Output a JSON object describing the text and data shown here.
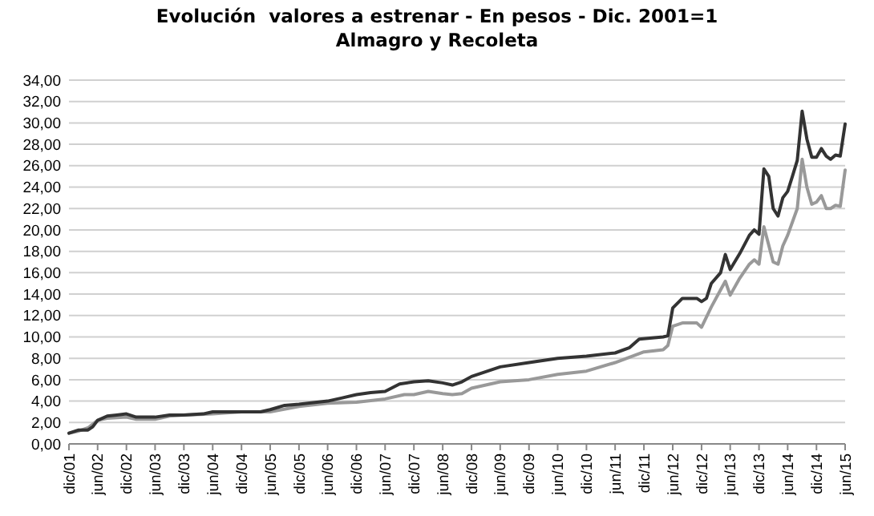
{
  "chart_data": {
    "type": "line",
    "title": "Evolución  valores a estrenar - En pesos - Dic. 2001=1",
    "subtitle": "Almagro y Recoleta",
    "xlim": [
      "2001-12",
      "2015-06"
    ],
    "xticks": [
      {
        "value": "2001-12",
        "label": "dic/01"
      },
      {
        "value": "2002-06",
        "label": "jun/02"
      },
      {
        "value": "2002-12",
        "label": "dic/02"
      },
      {
        "value": "2003-06",
        "label": "jun/03"
      },
      {
        "value": "2003-12",
        "label": "dic/03"
      },
      {
        "value": "2004-06",
        "label": "jun/04"
      },
      {
        "value": "2004-12",
        "label": "dic/04"
      },
      {
        "value": "2005-06",
        "label": "jun/05"
      },
      {
        "value": "2005-12",
        "label": "dic/05"
      },
      {
        "value": "2006-06",
        "label": "jun/06"
      },
      {
        "value": "2006-12",
        "label": "dic/06"
      },
      {
        "value": "2007-06",
        "label": "jun/07"
      },
      {
        "value": "2007-12",
        "label": "dic/07"
      },
      {
        "value": "2008-06",
        "label": "jun/08"
      },
      {
        "value": "2008-12",
        "label": "dic/08"
      },
      {
        "value": "2009-06",
        "label": "jun/09"
      },
      {
        "value": "2009-12",
        "label": "dic/09"
      },
      {
        "value": "2010-06",
        "label": "jun/10"
      },
      {
        "value": "2010-12",
        "label": "dic/10"
      },
      {
        "value": "2011-06",
        "label": "jun/11"
      },
      {
        "value": "2011-12",
        "label": "dic/11"
      },
      {
        "value": "2012-06",
        "label": "jun/12"
      },
      {
        "value": "2012-12",
        "label": "dic/12"
      },
      {
        "value": "2013-06",
        "label": "jun/13"
      },
      {
        "value": "2013-12",
        "label": "dic/13"
      },
      {
        "value": "2014-06",
        "label": "jun/14"
      },
      {
        "value": "2014-12",
        "label": "dic/14"
      },
      {
        "value": "2015-06",
        "label": "jun/15"
      }
    ],
    "ylim": [
      0,
      34
    ],
    "yticks": [
      {
        "value": 0,
        "label": "0,00"
      },
      {
        "value": 2,
        "label": "2,00"
      },
      {
        "value": 4,
        "label": "4,00"
      },
      {
        "value": 6,
        "label": "6,00"
      },
      {
        "value": 8,
        "label": "8,00"
      },
      {
        "value": 10,
        "label": "10,00"
      },
      {
        "value": 12,
        "label": "12,00"
      },
      {
        "value": 14,
        "label": "14,00"
      },
      {
        "value": 16,
        "label": "16,00"
      },
      {
        "value": 18,
        "label": "18,00"
      },
      {
        "value": 20,
        "label": "20,00"
      },
      {
        "value": 22,
        "label": "22,00"
      },
      {
        "value": 24,
        "label": "24,00"
      },
      {
        "value": 26,
        "label": "26,00"
      },
      {
        "value": 28,
        "label": "28,00"
      },
      {
        "value": 30,
        "label": "30,00"
      },
      {
        "value": 32,
        "label": "32,00"
      },
      {
        "value": 34,
        "label": "34,00"
      }
    ],
    "grid": "y",
    "marker": "none",
    "line_style": "solid",
    "series": [
      {
        "color": "#999999",
        "x": [
          "2001-12",
          "2002-02",
          "2002-04",
          "2002-06",
          "2002-08",
          "2002-12",
          "2003-02",
          "2003-06",
          "2003-09",
          "2003-12",
          "2004-06",
          "2004-12",
          "2005-06",
          "2005-12",
          "2006-06",
          "2006-12",
          "2007-06",
          "2007-10",
          "2007-12",
          "2008-03",
          "2008-06",
          "2008-08",
          "2008-10",
          "2008-12",
          "2009-06",
          "2009-12",
          "2010-06",
          "2010-12",
          "2011-06",
          "2011-12",
          "2012-04",
          "2012-05",
          "2012-06",
          "2012-08",
          "2012-11",
          "2012-12",
          "2013-02",
          "2013-04",
          "2013-05",
          "2013-06",
          "2013-08",
          "2013-10",
          "2013-11",
          "2013-12",
          "2014-01",
          "2014-03",
          "2014-04",
          "2014-05",
          "2014-06",
          "2014-08",
          "2014-09",
          "2014-10",
          "2014-11",
          "2014-12",
          "2015-01",
          "2015-02",
          "2015-03",
          "2015-04",
          "2015-05",
          "2015-06"
        ],
        "values": [
          1.0,
          1.2,
          1.5,
          2.2,
          2.4,
          2.5,
          2.3,
          2.3,
          2.6,
          2.7,
          2.8,
          3.0,
          3.0,
          3.5,
          3.8,
          3.9,
          4.2,
          4.6,
          4.6,
          4.9,
          4.7,
          4.6,
          4.7,
          5.2,
          5.8,
          6.0,
          6.5,
          6.8,
          7.6,
          8.6,
          8.8,
          9.2,
          11.0,
          11.3,
          11.3,
          10.9,
          12.8,
          14.4,
          15.2,
          13.9,
          15.5,
          16.8,
          17.2,
          16.8,
          20.3,
          17.0,
          16.8,
          18.5,
          19.5,
          22.0,
          26.6,
          24.0,
          22.4,
          22.6,
          23.2,
          22.0,
          22.0,
          22.3,
          22.2,
          25.6
        ]
      },
      {
        "color": "#333333",
        "x": [
          "2001-12",
          "2002-02",
          "2002-04",
          "2002-05",
          "2002-06",
          "2002-08",
          "2002-10",
          "2002-12",
          "2003-02",
          "2003-04",
          "2003-06",
          "2003-09",
          "2003-12",
          "2004-04",
          "2004-06",
          "2004-12",
          "2005-04",
          "2005-06",
          "2005-09",
          "2005-12",
          "2006-06",
          "2006-09",
          "2006-12",
          "2007-03",
          "2007-06",
          "2007-09",
          "2007-12",
          "2008-03",
          "2008-06",
          "2008-08",
          "2008-10",
          "2008-12",
          "2009-06",
          "2009-12",
          "2010-06",
          "2010-12",
          "2011-06",
          "2011-09",
          "2011-11",
          "2012-04",
          "2012-05",
          "2012-06",
          "2012-08",
          "2012-11",
          "2012-12",
          "2013-01",
          "2013-02",
          "2013-04",
          "2013-05",
          "2013-06",
          "2013-08",
          "2013-10",
          "2013-11",
          "2013-12",
          "2014-01",
          "2014-02",
          "2014-03",
          "2014-04",
          "2014-05",
          "2014-06",
          "2014-07",
          "2014-08",
          "2014-09",
          "2014-10",
          "2014-11",
          "2014-12",
          "2015-01",
          "2015-02",
          "2015-03",
          "2015-04",
          "2015-05",
          "2015-06"
        ],
        "values": [
          1.0,
          1.3,
          1.3,
          1.6,
          2.2,
          2.6,
          2.7,
          2.8,
          2.5,
          2.5,
          2.5,
          2.7,
          2.7,
          2.8,
          3.0,
          3.0,
          3.0,
          3.2,
          3.6,
          3.7,
          4.0,
          4.3,
          4.6,
          4.8,
          4.9,
          5.6,
          5.8,
          5.9,
          5.7,
          5.5,
          5.8,
          6.3,
          7.2,
          7.6,
          8.0,
          8.2,
          8.5,
          9.0,
          9.8,
          10.0,
          10.1,
          12.7,
          13.6,
          13.6,
          13.3,
          13.6,
          15.0,
          16.0,
          17.7,
          16.3,
          17.8,
          19.5,
          20.0,
          19.6,
          25.7,
          25.0,
          22.0,
          21.3,
          23.0,
          23.6,
          25.0,
          26.5,
          31.1,
          28.5,
          26.8,
          26.8,
          27.6,
          26.9,
          26.6,
          27.0,
          26.9,
          29.9
        ]
      }
    ]
  }
}
